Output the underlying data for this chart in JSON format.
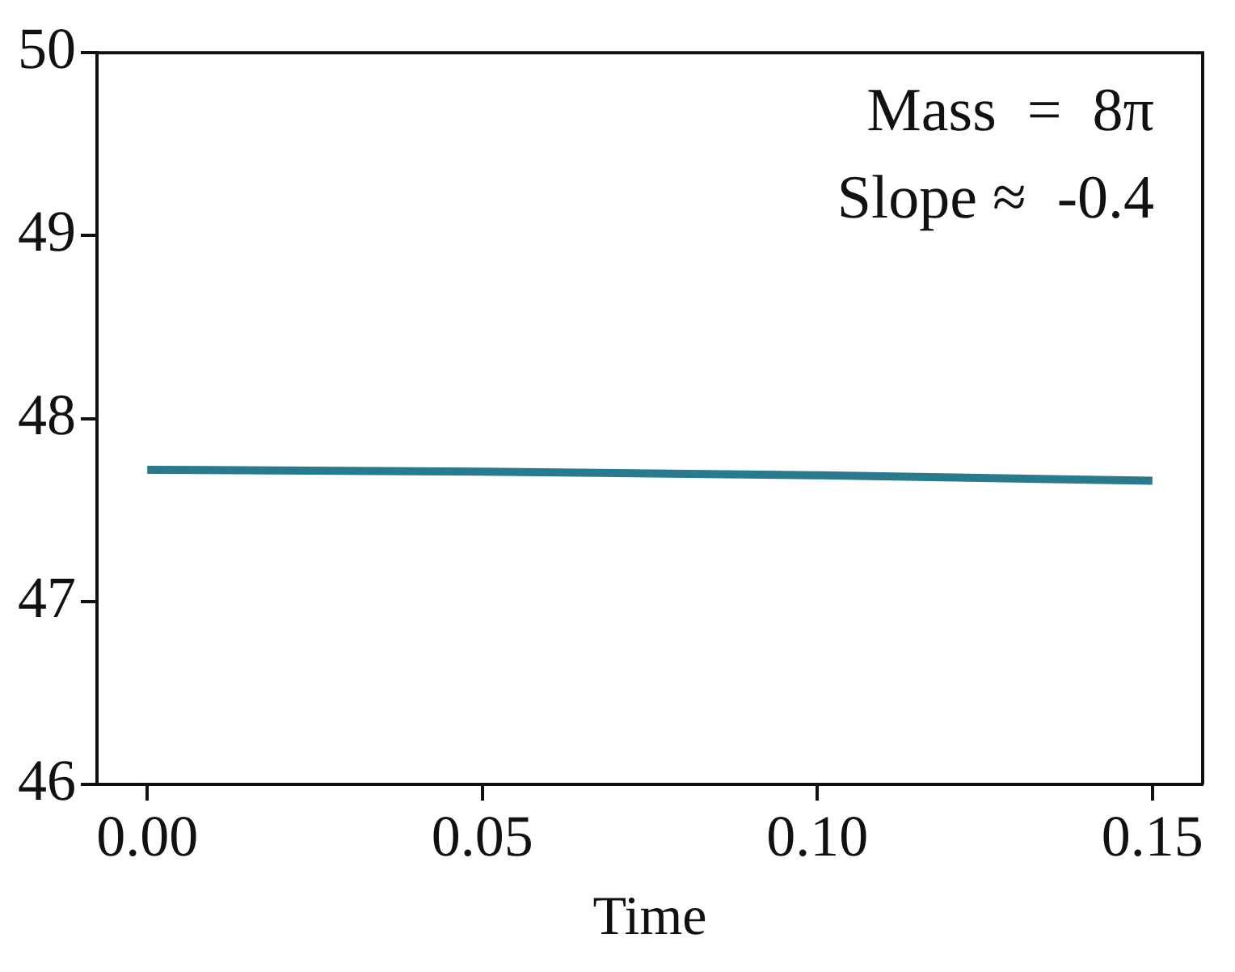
{
  "chart_data": {
    "type": "line",
    "xlabel": "Time",
    "x": [
      0,
      0.05,
      0.1,
      0.15
    ],
    "series": [
      {
        "color": "#2a7a8e",
        "values": [
          47.72,
          47.71,
          47.69,
          47.66
        ]
      }
    ],
    "xlim": [
      -0.0075,
      0.1575
    ],
    "xticks": [
      {
        "value": 0,
        "label": "0.00"
      },
      {
        "value": 0.05,
        "label": "0.05"
      },
      {
        "value": 0.1,
        "label": "0.10"
      },
      {
        "value": 0.15,
        "label": "0.15"
      }
    ],
    "ylim": [
      46,
      50
    ],
    "yticks": [
      46,
      47,
      48,
      49,
      50
    ],
    "grid": false,
    "legend": false,
    "marker": "none",
    "line_style": "solid",
    "annotations": [
      "Mass  =  8π",
      "Slope ≈  -0.4"
    ]
  }
}
